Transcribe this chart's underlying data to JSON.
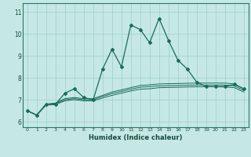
{
  "title": "",
  "xlabel": "Humidex (Indice chaleur)",
  "ylabel": "",
  "bg_color": "#c5e8e5",
  "grid_color": "#9ecece",
  "line_color": "#1a6b5a",
  "xlim": [
    -0.5,
    23.5
  ],
  "ylim": [
    5.75,
    11.4
  ],
  "xticks": [
    0,
    1,
    2,
    3,
    4,
    5,
    6,
    7,
    8,
    9,
    10,
    11,
    12,
    13,
    14,
    15,
    16,
    17,
    18,
    19,
    20,
    21,
    22,
    23
  ],
  "yticks": [
    6,
    7,
    8,
    9,
    10,
    11
  ],
  "series_main": [
    6.5,
    6.3,
    6.8,
    6.8,
    7.3,
    7.5,
    7.1,
    7.0,
    8.4,
    9.3,
    8.5,
    10.4,
    10.2,
    9.6,
    10.7,
    9.7,
    8.8,
    8.4,
    7.8,
    7.6,
    7.6,
    7.6,
    7.7,
    7.5
  ],
  "series_flat": [
    [
      6.5,
      6.3,
      6.8,
      6.85,
      7.05,
      7.1,
      7.05,
      7.05,
      7.2,
      7.35,
      7.45,
      7.55,
      7.65,
      7.68,
      7.72,
      7.73,
      7.74,
      7.75,
      7.76,
      7.76,
      7.76,
      7.76,
      7.72,
      7.5
    ],
    [
      6.5,
      6.3,
      6.8,
      6.82,
      7.0,
      7.05,
      7.0,
      7.0,
      7.15,
      7.28,
      7.38,
      7.48,
      7.57,
      7.6,
      7.63,
      7.64,
      7.65,
      7.66,
      7.67,
      7.67,
      7.67,
      7.67,
      7.63,
      7.42
    ],
    [
      6.5,
      6.3,
      6.75,
      6.78,
      6.95,
      7.0,
      6.95,
      6.95,
      7.08,
      7.2,
      7.3,
      7.4,
      7.48,
      7.5,
      7.55,
      7.56,
      7.57,
      7.58,
      7.59,
      7.59,
      7.59,
      7.58,
      7.55,
      7.35
    ]
  ]
}
